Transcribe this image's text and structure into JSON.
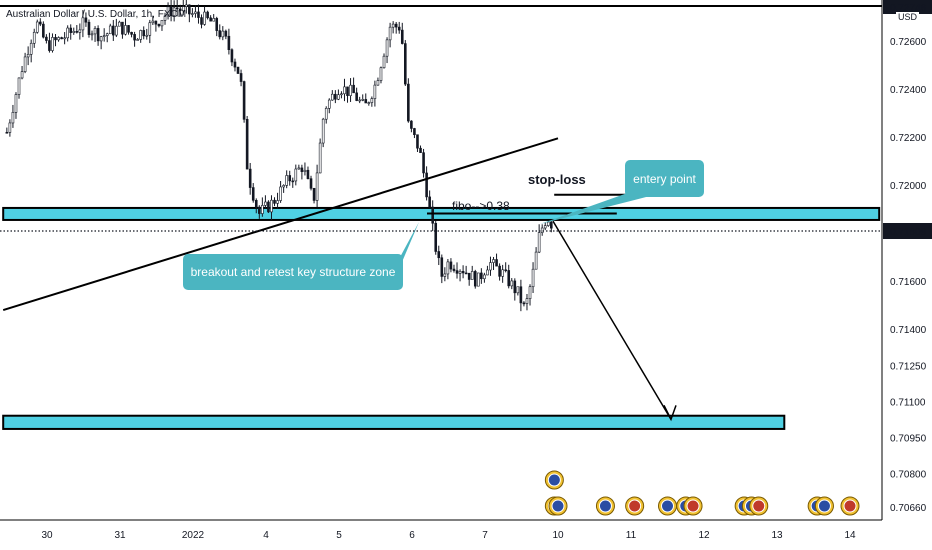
{
  "header": {
    "symbol_text": "Australian Dollar / U.S. Dollar, 1h, FXCM"
  },
  "price_axis": {
    "currency": "USD",
    "top_price": "0.72746",
    "current_price": "0.71809",
    "ticks": [
      {
        "label": "0.72600",
        "value": 0.726
      },
      {
        "label": "0.72400",
        "value": 0.724
      },
      {
        "label": "0.72200",
        "value": 0.722
      },
      {
        "label": "0.72000",
        "value": 0.72
      },
      {
        "label": "0.71600",
        "value": 0.716
      },
      {
        "label": "0.71400",
        "value": 0.714
      },
      {
        "label": "0.71250",
        "value": 0.7125
      },
      {
        "label": "0.71100",
        "value": 0.711
      },
      {
        "label": "0.70950",
        "value": 0.7095
      },
      {
        "label": "0.70800",
        "value": 0.708
      },
      {
        "label": "0.70660",
        "value": 0.7066
      }
    ]
  },
  "time_axis": {
    "ticks": [
      {
        "label": "30",
        "t": 0
      },
      {
        "label": "31",
        "t": 1
      },
      {
        "label": "2022",
        "t": 2
      },
      {
        "label": "4",
        "t": 3
      },
      {
        "label": "5",
        "t": 4
      },
      {
        "label": "6",
        "t": 5
      },
      {
        "label": "7",
        "t": 6
      },
      {
        "label": "10",
        "t": 7
      },
      {
        "label": "11",
        "t": 8
      },
      {
        "label": "12",
        "t": 9
      },
      {
        "label": "13",
        "t": 10
      },
      {
        "label": "14",
        "t": 11
      }
    ]
  },
  "annotations": {
    "breakout_label": "breakout and retest key structure zone",
    "entry_label": "entery point",
    "stoploss_label": "stop-loss",
    "fibo_label": "fibo-->0.38"
  },
  "colors": {
    "zone_fill": "#4fd0e3",
    "callout_bg": "#4bb5c1",
    "candle": "#131722"
  },
  "chart_data": {
    "type": "candlestick",
    "series_price": [
      {
        "t": -0.55,
        "p": 0.7222
      },
      {
        "t": -0.35,
        "p": 0.7248
      },
      {
        "t": -0.15,
        "p": 0.7268
      },
      {
        "t": 0.0,
        "p": 0.7258
      },
      {
        "t": 0.25,
        "p": 0.7262
      },
      {
        "t": 0.5,
        "p": 0.7267
      },
      {
        "t": 0.75,
        "p": 0.7262
      },
      {
        "t": 1.0,
        "p": 0.7266
      },
      {
        "t": 1.2,
        "p": 0.7262
      },
      {
        "t": 1.5,
        "p": 0.7268
      },
      {
        "t": 1.75,
        "p": 0.7274
      },
      {
        "t": 2.0,
        "p": 0.7271
      },
      {
        "t": 2.25,
        "p": 0.7268
      },
      {
        "t": 2.45,
        "p": 0.726
      },
      {
        "t": 2.65,
        "p": 0.7245
      },
      {
        "t": 2.75,
        "p": 0.7205
      },
      {
        "t": 2.9,
        "p": 0.7188
      },
      {
        "t": 3.1,
        "p": 0.7193
      },
      {
        "t": 3.3,
        "p": 0.7202
      },
      {
        "t": 3.5,
        "p": 0.7208
      },
      {
        "t": 3.65,
        "p": 0.7193
      },
      {
        "t": 3.8,
        "p": 0.7232
      },
      {
        "t": 4.0,
        "p": 0.7241
      },
      {
        "t": 4.2,
        "p": 0.7238
      },
      {
        "t": 4.35,
        "p": 0.7232
      },
      {
        "t": 4.5,
        "p": 0.7242
      },
      {
        "t": 4.7,
        "p": 0.7266
      },
      {
        "t": 4.85,
        "p": 0.7266
      },
      {
        "t": 4.95,
        "p": 0.7225
      },
      {
        "t": 5.1,
        "p": 0.7215
      },
      {
        "t": 5.2,
        "p": 0.7198
      },
      {
        "t": 5.3,
        "p": 0.7178
      },
      {
        "t": 5.4,
        "p": 0.7162
      },
      {
        "t": 5.5,
        "p": 0.7168
      },
      {
        "t": 5.7,
        "p": 0.7165
      },
      {
        "t": 5.9,
        "p": 0.716
      },
      {
        "t": 6.05,
        "p": 0.7168
      },
      {
        "t": 6.25,
        "p": 0.7163
      },
      {
        "t": 6.45,
        "p": 0.7155
      },
      {
        "t": 6.55,
        "p": 0.7148
      },
      {
        "t": 6.65,
        "p": 0.7162
      },
      {
        "t": 6.75,
        "p": 0.718
      },
      {
        "t": 6.85,
        "p": 0.7187
      },
      {
        "t": 6.95,
        "p": 0.7182
      }
    ],
    "zones": [
      {
        "name": "key-structure-zone",
        "t_start": -0.6,
        "t_end": 11.4,
        "p_top": 0.71905,
        "p_bottom": 0.71855
      },
      {
        "name": "target-zone",
        "t_start": -0.6,
        "t_end": 10.1,
        "p_top": 0.7104,
        "p_bottom": 0.70985
      }
    ],
    "trendline": {
      "t1": -0.6,
      "p1": 0.7148,
      "t2": 7.0,
      "p2": 0.72195
    },
    "fibo_line": {
      "t1": 5.0,
      "t2": 7.6,
      "p": 0.71882
    },
    "stoploss_line": {
      "t1": 6.4,
      "t2": 7.7,
      "p": 0.7196
    },
    "projection": {
      "t1": 7.0,
      "p1": 0.7185,
      "t2": 8.0,
      "p2": 0.71025
    },
    "current_price": 0.71809,
    "event_icons": [
      {
        "t": 6.95,
        "row": 1
      },
      {
        "t": 6.95,
        "row": 0
      },
      {
        "t": 7.0,
        "row": 0
      },
      {
        "t": 7.65,
        "row": 0
      },
      {
        "t": 8.05,
        "row": 0
      },
      {
        "t": 8.5,
        "row": 0
      },
      {
        "t": 8.75,
        "row": 0
      },
      {
        "t": 8.85,
        "row": 0
      },
      {
        "t": 9.55,
        "row": 0
      },
      {
        "t": 9.65,
        "row": 0
      },
      {
        "t": 9.75,
        "row": 0
      },
      {
        "t": 10.55,
        "row": 0
      },
      {
        "t": 10.65,
        "row": 0
      },
      {
        "t": 11.0,
        "row": 0
      }
    ]
  }
}
